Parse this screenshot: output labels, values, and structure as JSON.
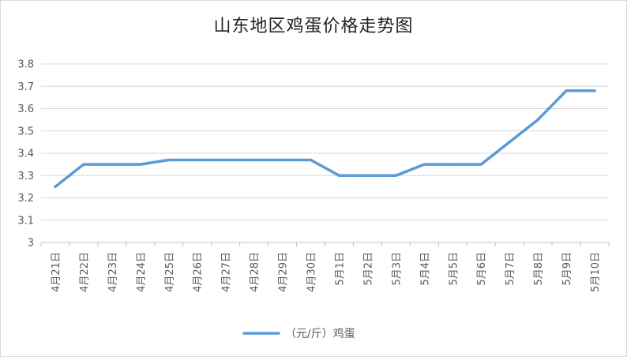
{
  "chart_data": {
    "type": "line",
    "title": "山东地区鸡蛋价格走势图",
    "xlabel": "",
    "ylabel": "",
    "categories": [
      "4月21日",
      "4月22日",
      "4月23日",
      "4月24日",
      "4月25日",
      "4月26日",
      "4月27日",
      "4月28日",
      "4月29日",
      "4月30日",
      "5月1日",
      "5月2日",
      "5月3日",
      "5月4日",
      "5月5日",
      "5月6日",
      "5月7日",
      "5月8日",
      "5月9日",
      "5月10日"
    ],
    "series": [
      {
        "name": "（元/斤）鸡蛋",
        "color": "#5b9bd5",
        "values": [
          3.25,
          3.35,
          3.35,
          3.35,
          3.37,
          3.37,
          3.37,
          3.37,
          3.37,
          3.37,
          3.3,
          3.3,
          3.3,
          3.35,
          3.35,
          3.35,
          3.45,
          3.55,
          3.68,
          3.68
        ]
      }
    ],
    "ylim": [
      3.0,
      3.8
    ],
    "yticks": [
      "3",
      "3.1",
      "3.2",
      "3.3",
      "3.4",
      "3.5",
      "3.6",
      "3.7",
      "3.8"
    ],
    "grid": true,
    "legend": "bottom-center"
  }
}
